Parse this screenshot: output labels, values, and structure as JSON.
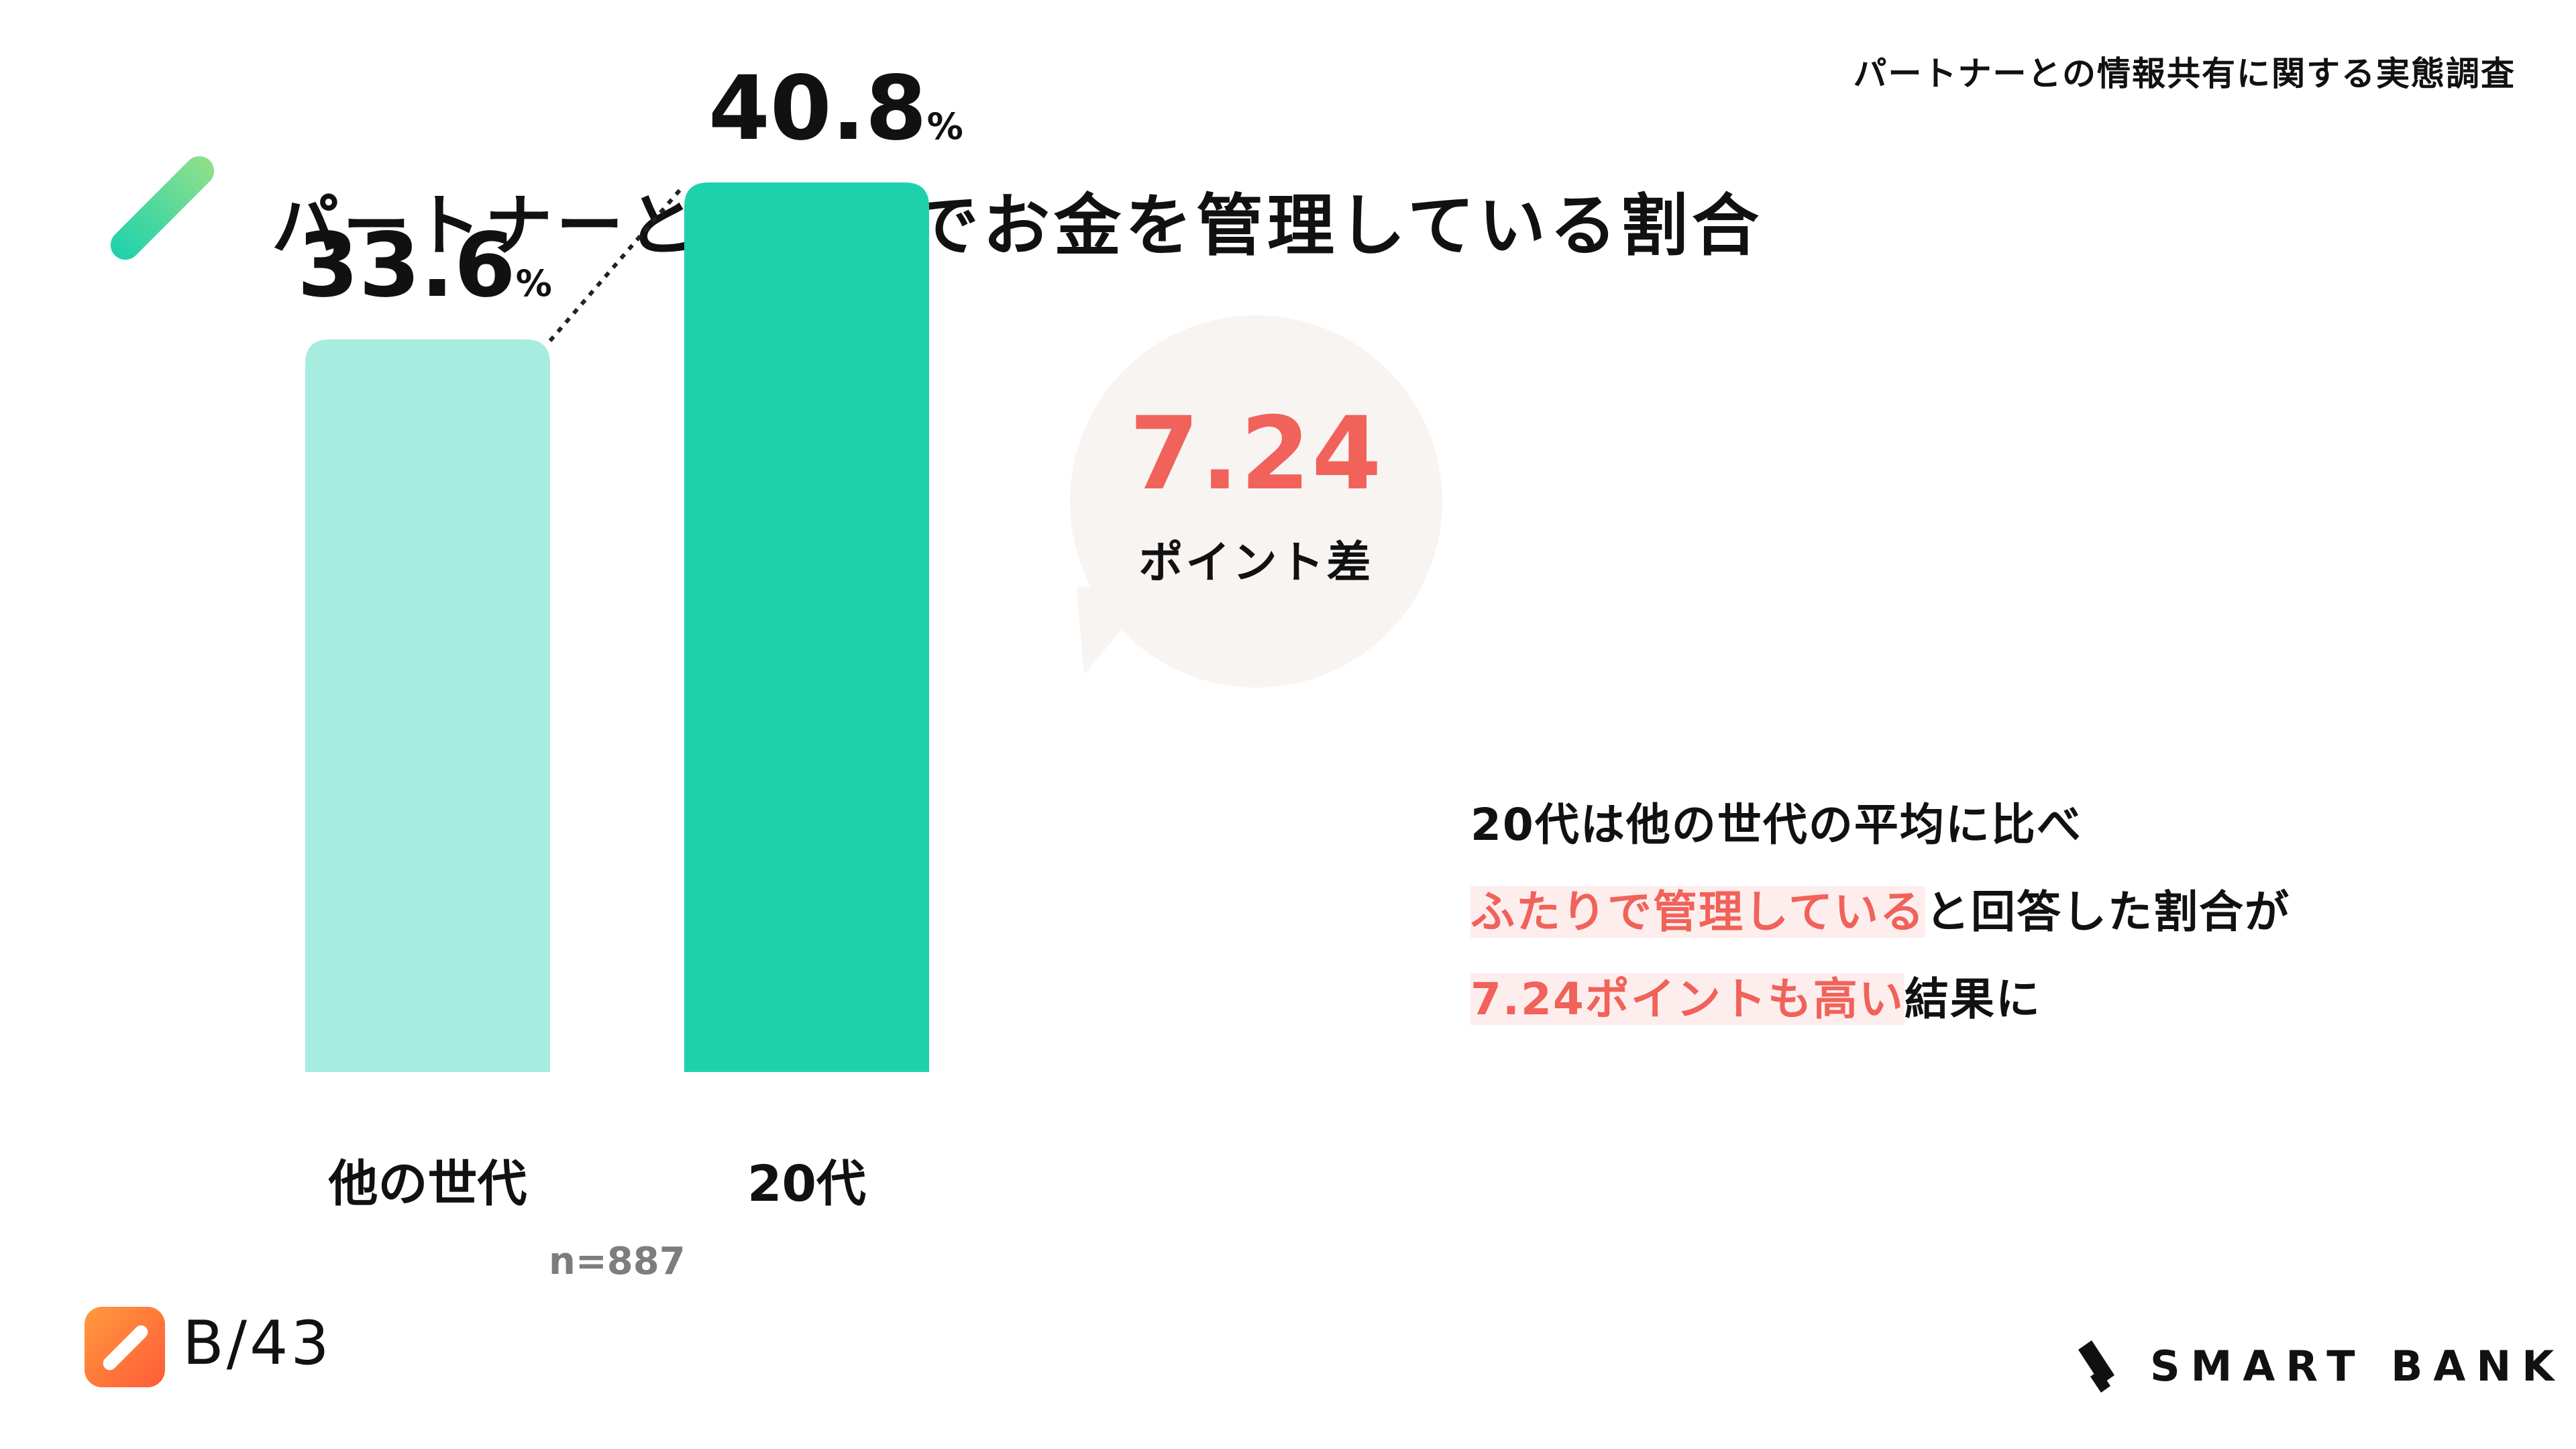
{
  "header": {
    "subtitle": "パートナーとの情報共有に関する実態調査",
    "title": "パートナーとふたりでお金を管理している割合"
  },
  "colors": {
    "bar_other": "#a6ecdf",
    "bar_20s": "#1ed1ad",
    "highlight": "#f0625a",
    "highlight_bg": "#fdeeed"
  },
  "chart_data": {
    "type": "bar",
    "categories": [
      "他の世代",
      "20代"
    ],
    "values": [
      33.6,
      40.8
    ],
    "value_labels": [
      "33.6",
      "40.8"
    ],
    "unit": "%",
    "ylim": [
      0,
      50
    ]
  },
  "bubble": {
    "value": "7.24",
    "label": "ポイント差"
  },
  "note": {
    "line1": "20代は他の世代の平均に比べ",
    "line2_highlight": "ふたりで管理している",
    "line2_rest": "と回答した割合が",
    "line3_highlight": "7.24ポイントも高い",
    "line3_rest": "結果に"
  },
  "sample_size": "n=887",
  "footer": {
    "app_logo_text": "B/43",
    "brand_text": "SMART BANK"
  }
}
